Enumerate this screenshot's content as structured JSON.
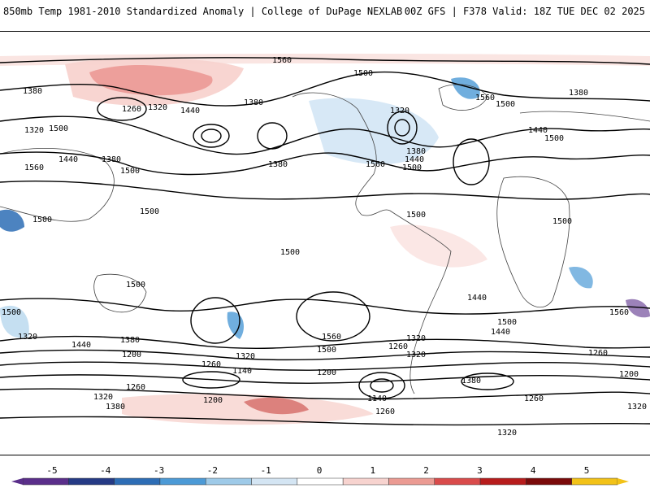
{
  "header": {
    "left": "850mb Temp 1981-2010 Standardized Anomaly | College of DuPage NEXLAB",
    "right": "00Z GFS | F378 Valid: 18Z TUE DEC 02 2025"
  },
  "contour_labels": [
    "1560",
    "1500",
    "1380",
    "1260",
    "1320",
    "1440",
    "1380",
    "1500",
    "1320",
    "1440",
    "1380",
    "1560",
    "1500",
    "1380",
    "1320",
    "1440",
    "1380",
    "1500",
    "1560",
    "1500",
    "1440",
    "1380",
    "1560",
    "1500",
    "1500",
    "1500",
    "1500",
    "1500",
    "1500",
    "1440",
    "1560",
    "1500",
    "1320",
    "1440",
    "1380",
    "1200",
    "1320",
    "1260",
    "1140",
    "1200",
    "1260",
    "1320",
    "1380",
    "1200",
    "1140",
    "1260",
    "1320",
    "1260",
    "1320",
    "1560",
    "1500",
    "1380",
    "1260",
    "1200",
    "1320",
    "1260",
    "1320",
    "1440",
    "1500",
    "1500"
  ],
  "colorbar": {
    "ticks": [
      "-5",
      "-4",
      "-3",
      "-2",
      "-1",
      "0",
      "1",
      "2",
      "3",
      "4",
      "5"
    ],
    "colors": [
      "#5a2e8a",
      "#253a85",
      "#2d6db5",
      "#4c9ad6",
      "#9ecae8",
      "#d4e5f3",
      "#ffffff",
      "#f7d3cf",
      "#eb9b93",
      "#d94b4b",
      "#b71c1c",
      "#7a0a0a",
      "#f2c218"
    ]
  }
}
